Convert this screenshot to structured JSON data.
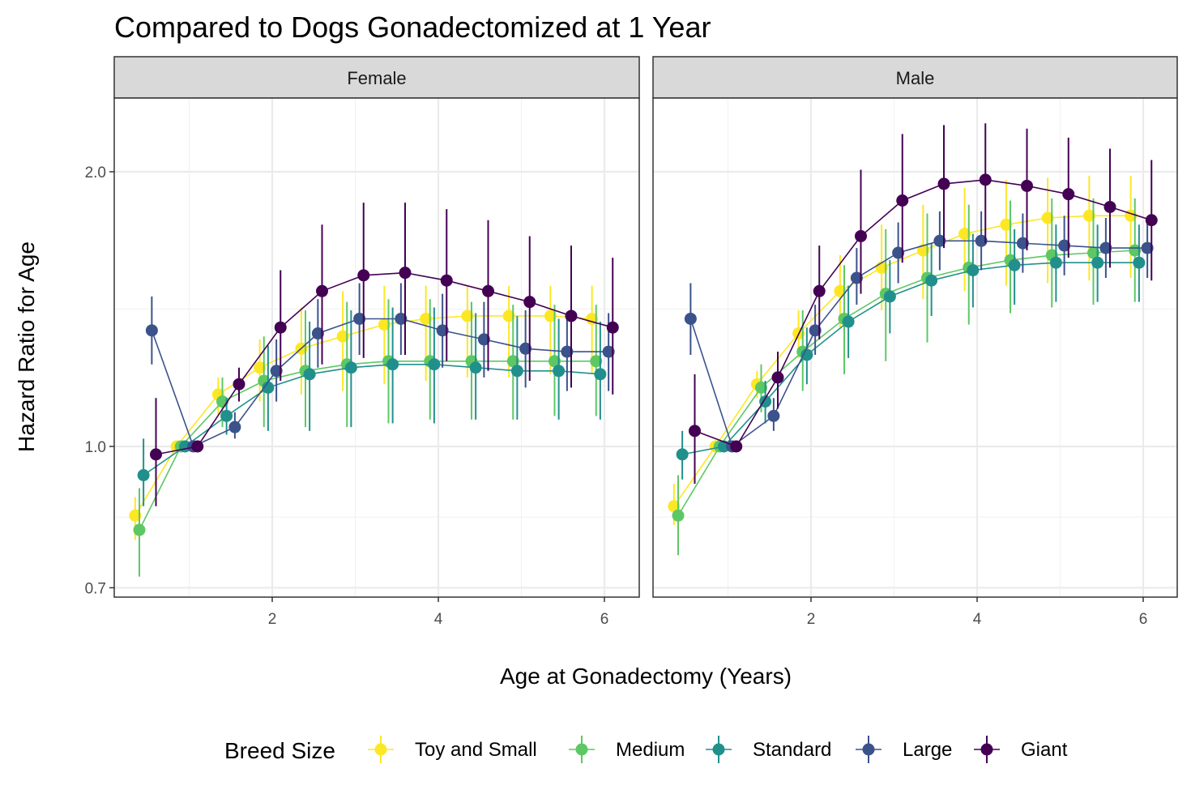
{
  "chart_data": {
    "type": "line",
    "title": "Compared to Dogs Gonadectomized at 1 Year",
    "xlabel": "Age at Gonadectomy (Years)",
    "ylabel": "Hazard Ratio for Age",
    "y_scale": "log",
    "ylim": [
      0.68,
      2.45
    ],
    "xlim": [
      0.3,
      6.3
    ],
    "y_ticks": [
      0.7,
      1.0,
      2.0
    ],
    "y_tick_labels": [
      "0.7",
      "1.0",
      "2.0"
    ],
    "x_ticks": [
      2,
      4,
      6
    ],
    "x_tick_labels": [
      "2",
      "4",
      "6"
    ],
    "grid": true,
    "error_bars": true,
    "legend": {
      "title": "Breed Size",
      "position": "bottom",
      "entries": [
        "Toy and Small",
        "Medium",
        "Standard",
        "Large",
        "Giant"
      ]
    },
    "colors": {
      "Toy and Small": "#FDE725",
      "Medium": "#5DC863",
      "Standard": "#21908C",
      "Large": "#3B528B",
      "Giant": "#440154"
    },
    "panels": [
      {
        "name": "Female",
        "series": [
          {
            "name": "Toy and Small",
            "x": [
              0.35,
              0.85,
              1.35,
              1.85,
              2.35,
              2.85,
              3.35,
              3.85,
              4.35,
              4.85,
              5.35,
              5.85
            ],
            "y": [
              0.84,
              1.0,
              1.14,
              1.22,
              1.28,
              1.32,
              1.36,
              1.38,
              1.39,
              1.39,
              1.39,
              1.38
            ],
            "lo": [
              0.79,
              1.0,
              1.08,
              1.12,
              1.14,
              1.15,
              1.17,
              1.18,
              1.19,
              1.19,
              1.2,
              1.2
            ],
            "hi": [
              0.88,
              1.0,
              1.19,
              1.31,
              1.42,
              1.48,
              1.5,
              1.5,
              1.5,
              1.5,
              1.5,
              1.5
            ]
          },
          {
            "name": "Medium",
            "x": [
              0.4,
              0.9,
              1.4,
              1.9,
              2.4,
              2.9,
              3.4,
              3.9,
              4.4,
              4.9,
              5.4,
              5.9
            ],
            "y": [
              0.81,
              1.0,
              1.12,
              1.18,
              1.21,
              1.23,
              1.24,
              1.24,
              1.24,
              1.24,
              1.24,
              1.24
            ],
            "lo": [
              0.72,
              1.0,
              1.05,
              1.05,
              1.05,
              1.05,
              1.06,
              1.07,
              1.07,
              1.07,
              1.08,
              1.08
            ],
            "hi": [
              0.9,
              1.0,
              1.19,
              1.32,
              1.41,
              1.44,
              1.45,
              1.45,
              1.44,
              1.43,
              1.43,
              1.43
            ]
          },
          {
            "name": "Standard",
            "x": [
              0.45,
              0.95,
              1.45,
              1.95,
              2.45,
              2.95,
              3.45,
              3.95,
              4.45,
              4.95,
              5.45,
              5.95
            ],
            "y": [
              0.93,
              1.0,
              1.08,
              1.16,
              1.2,
              1.22,
              1.23,
              1.23,
              1.22,
              1.21,
              1.21,
              1.2
            ],
            "lo": [
              0.86,
              1.0,
              1.03,
              1.04,
              1.04,
              1.05,
              1.06,
              1.06,
              1.07,
              1.07,
              1.07,
              1.07
            ],
            "hi": [
              1.02,
              1.0,
              1.13,
              1.29,
              1.37,
              1.41,
              1.42,
              1.42,
              1.4,
              1.39,
              1.38,
              1.37
            ]
          },
          {
            "name": "Large",
            "x": [
              0.55,
              1.05,
              1.55,
              2.05,
              2.55,
              3.05,
              3.55,
              4.05,
              4.55,
              5.05,
              5.55,
              6.05
            ],
            "y": [
              1.34,
              1.0,
              1.05,
              1.21,
              1.33,
              1.38,
              1.38,
              1.34,
              1.31,
              1.28,
              1.27,
              1.27
            ],
            "lo": [
              1.23,
              1.0,
              1.02,
              1.12,
              1.22,
              1.26,
              1.26,
              1.22,
              1.19,
              1.16,
              1.15,
              1.15
            ],
            "hi": [
              1.46,
              1.0,
              1.09,
              1.31,
              1.45,
              1.51,
              1.51,
              1.47,
              1.44,
              1.41,
              1.4,
              1.4
            ]
          },
          {
            "name": "Giant",
            "x": [
              0.6,
              1.1,
              1.6,
              2.1,
              2.6,
              3.1,
              3.6,
              4.1,
              4.6,
              5.1,
              5.6,
              6.1
            ],
            "y": [
              0.98,
              1.0,
              1.17,
              1.35,
              1.48,
              1.54,
              1.55,
              1.52,
              1.48,
              1.44,
              1.39,
              1.35
            ],
            "lo": [
              0.86,
              1.0,
              1.12,
              1.18,
              1.23,
              1.25,
              1.26,
              1.24,
              1.21,
              1.18,
              1.16,
              1.14
            ],
            "hi": [
              1.13,
              1.0,
              1.22,
              1.56,
              1.75,
              1.85,
              1.85,
              1.82,
              1.77,
              1.7,
              1.66,
              1.61
            ]
          }
        ]
      },
      {
        "name": "Male",
        "series": [
          {
            "name": "Toy and Small",
            "x": [
              0.35,
              0.85,
              1.35,
              1.85,
              2.35,
              2.85,
              3.35,
              3.85,
              4.35,
              4.85,
              5.35,
              5.85
            ],
            "y": [
              0.86,
              1.0,
              1.17,
              1.33,
              1.48,
              1.57,
              1.64,
              1.71,
              1.75,
              1.78,
              1.79,
              1.79
            ],
            "lo": [
              0.82,
              1.0,
              1.13,
              1.25,
              1.35,
              1.41,
              1.45,
              1.48,
              1.5,
              1.51,
              1.52,
              1.53
            ],
            "hi": [
              0.91,
              1.0,
              1.21,
              1.41,
              1.62,
              1.75,
              1.84,
              1.92,
              1.96,
              1.97,
              1.98,
              1.98
            ]
          },
          {
            "name": "Medium",
            "x": [
              0.4,
              0.9,
              1.4,
              1.9,
              2.4,
              2.9,
              3.4,
              3.9,
              4.4,
              4.9,
              5.4,
              5.9
            ],
            "y": [
              0.84,
              1.0,
              1.16,
              1.27,
              1.38,
              1.47,
              1.53,
              1.57,
              1.6,
              1.62,
              1.63,
              1.64
            ],
            "lo": [
              0.76,
              1.0,
              1.09,
              1.15,
              1.2,
              1.24,
              1.3,
              1.36,
              1.4,
              1.42,
              1.43,
              1.44
            ],
            "hi": [
              0.93,
              1.0,
              1.23,
              1.41,
              1.58,
              1.73,
              1.8,
              1.84,
              1.86,
              1.87,
              1.87,
              1.87
            ]
          },
          {
            "name": "Standard",
            "x": [
              0.45,
              0.95,
              1.45,
              1.95,
              2.45,
              2.95,
              3.45,
              3.95,
              4.45,
              4.95,
              5.45,
              5.95
            ],
            "y": [
              0.98,
              1.0,
              1.12,
              1.26,
              1.37,
              1.46,
              1.52,
              1.56,
              1.58,
              1.59,
              1.59,
              1.59
            ],
            "lo": [
              0.92,
              1.0,
              1.06,
              1.17,
              1.25,
              1.33,
              1.39,
              1.42,
              1.43,
              1.44,
              1.44,
              1.44
            ],
            "hi": [
              1.04,
              1.0,
              1.18,
              1.35,
              1.5,
              1.6,
              1.67,
              1.71,
              1.73,
              1.75,
              1.75,
              1.75
            ]
          },
          {
            "name": "Large",
            "x": [
              0.55,
              1.05,
              1.55,
              2.05,
              2.55,
              3.05,
              3.55,
              4.05,
              4.55,
              5.05,
              5.55,
              6.05
            ],
            "y": [
              1.38,
              1.0,
              1.08,
              1.34,
              1.53,
              1.63,
              1.68,
              1.68,
              1.67,
              1.66,
              1.65,
              1.65
            ],
            "lo": [
              1.26,
              1.0,
              1.04,
              1.26,
              1.43,
              1.51,
              1.56,
              1.56,
              1.55,
              1.54,
              1.53,
              1.53
            ],
            "hi": [
              1.51,
              1.0,
              1.13,
              1.43,
              1.65,
              1.76,
              1.81,
              1.81,
              1.8,
              1.79,
              1.78,
              1.78
            ]
          },
          {
            "name": "Giant",
            "x": [
              0.6,
              1.1,
              1.6,
              2.1,
              2.6,
              3.1,
              3.6,
              4.1,
              4.6,
              5.1,
              5.6,
              6.1
            ],
            "y": [
              1.04,
              1.0,
              1.19,
              1.48,
              1.7,
              1.86,
              1.94,
              1.96,
              1.93,
              1.89,
              1.83,
              1.77
            ],
            "lo": [
              0.91,
              1.0,
              1.1,
              1.31,
              1.47,
              1.59,
              1.65,
              1.67,
              1.64,
              1.61,
              1.57,
              1.52
            ],
            "hi": [
              1.2,
              1.0,
              1.27,
              1.66,
              2.01,
              2.2,
              2.25,
              2.26,
              2.23,
              2.18,
              2.12,
              2.06
            ]
          }
        ]
      }
    ]
  }
}
